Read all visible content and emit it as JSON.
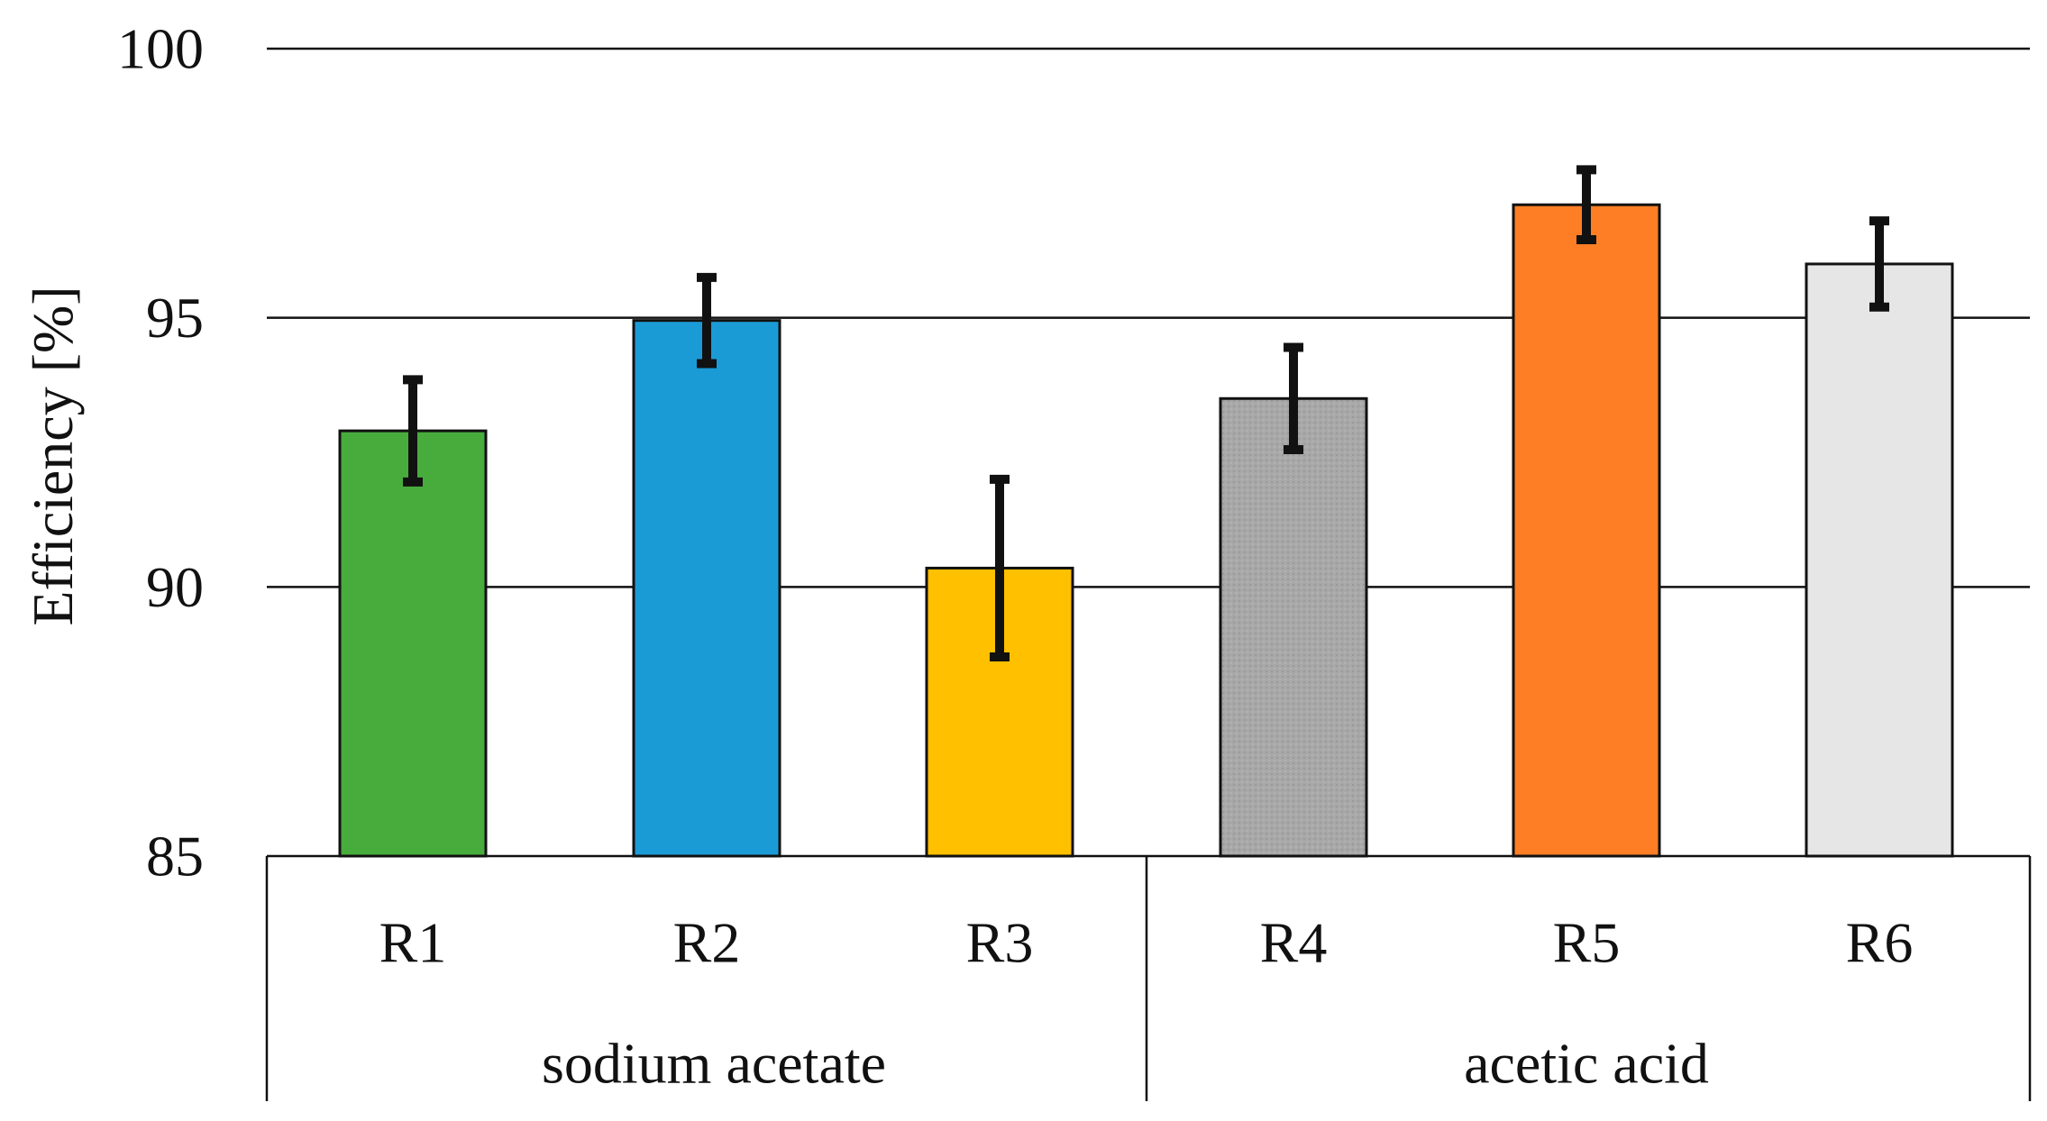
{
  "chart_data": {
    "type": "bar",
    "title": "",
    "xlabel": "",
    "ylabel": "Efficiency [%]",
    "ylim": [
      85,
      100
    ],
    "yticks": [
      85,
      90,
      95,
      100
    ],
    "grid": true,
    "categories": [
      "R1",
      "R2",
      "R3",
      "R4",
      "R5",
      "R6"
    ],
    "values": [
      92.9,
      94.95,
      90.35,
      93.5,
      97.1,
      96.0
    ],
    "errors": [
      0.95,
      0.8,
      1.65,
      0.95,
      0.65,
      0.8
    ],
    "colors": [
      "#48ac3d",
      "#1b9bd6",
      "#ffc000",
      "#a5a5a5",
      "#fd7e24",
      "#e6e6e6"
    ],
    "groups": [
      {
        "label": "sodium acetate",
        "categories": [
          "R1",
          "R2",
          "R3"
        ]
      },
      {
        "label": "acetic acid",
        "categories": [
          "R4",
          "R5",
          "R6"
        ]
      }
    ]
  }
}
